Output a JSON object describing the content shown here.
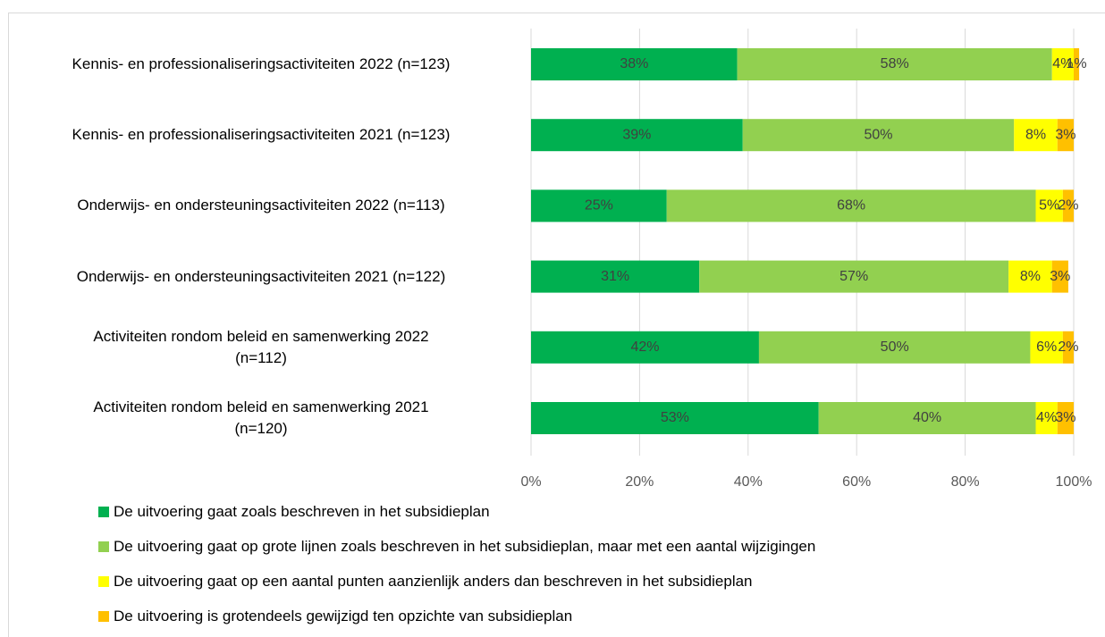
{
  "chart_data": {
    "type": "stacked_barh",
    "categories": [
      "Kennis- en professionaliseringsactiviteiten 2022 (n=123)",
      "Kennis- en professionaliseringsactiviteiten 2021 (n=123)",
      "Onderwijs- en ondersteuningsactiviteiten 2022 (n=113)",
      "Onderwijs- en ondersteuningsactiviteiten 2021 (n=122)",
      "Activiteiten rondom beleid en samenwerking 2022\n(n=112)",
      "Activiteiten rondom beleid en samenwerking 2021\n(n=120)"
    ],
    "series": [
      {
        "name": "De uitvoering gaat zoals beschreven in het subsidieplan",
        "color": "#00b050",
        "values": [
          38,
          39,
          25,
          31,
          42,
          53
        ],
        "value_labels": [
          "38%",
          "39%",
          "25%",
          "31%",
          "42%",
          "53%"
        ]
      },
      {
        "name": "De uitvoering gaat op grote lijnen zoals beschreven in het subsidieplan, maar met een aantal wijzigingen",
        "color": "#92d050",
        "values": [
          58,
          50,
          68,
          57,
          50,
          40
        ],
        "value_labels": [
          "58%",
          "50%",
          "68%",
          "57%",
          "50%",
          "40%"
        ]
      },
      {
        "name": "De uitvoering gaat op een aantal punten aanzienlijk anders dan beschreven in het subsidieplan",
        "color": "#ffff00",
        "values": [
          4,
          8,
          5,
          8,
          6,
          4
        ],
        "value_labels": [
          "4%",
          "8%",
          "5%",
          "8%",
          "6%",
          "4%"
        ]
      },
      {
        "name": "De uitvoering is grotendeels gewijzigd ten opzichte van subsidieplan",
        "color": "#ffc000",
        "values": [
          1,
          3,
          2,
          3,
          2,
          3
        ],
        "value_labels": [
          "1%",
          "3%",
          "2%",
          "3%",
          "2%",
          "3%"
        ]
      }
    ],
    "xlim": [
      0,
      100
    ],
    "xticks": [
      {
        "value": 0,
        "label": "0%"
      },
      {
        "value": 20,
        "label": "20%"
      },
      {
        "value": 40,
        "label": "40%"
      },
      {
        "value": 60,
        "label": "60%"
      },
      {
        "value": 80,
        "label": "80%"
      },
      {
        "value": 100,
        "label": "100%"
      }
    ],
    "grid": true
  }
}
